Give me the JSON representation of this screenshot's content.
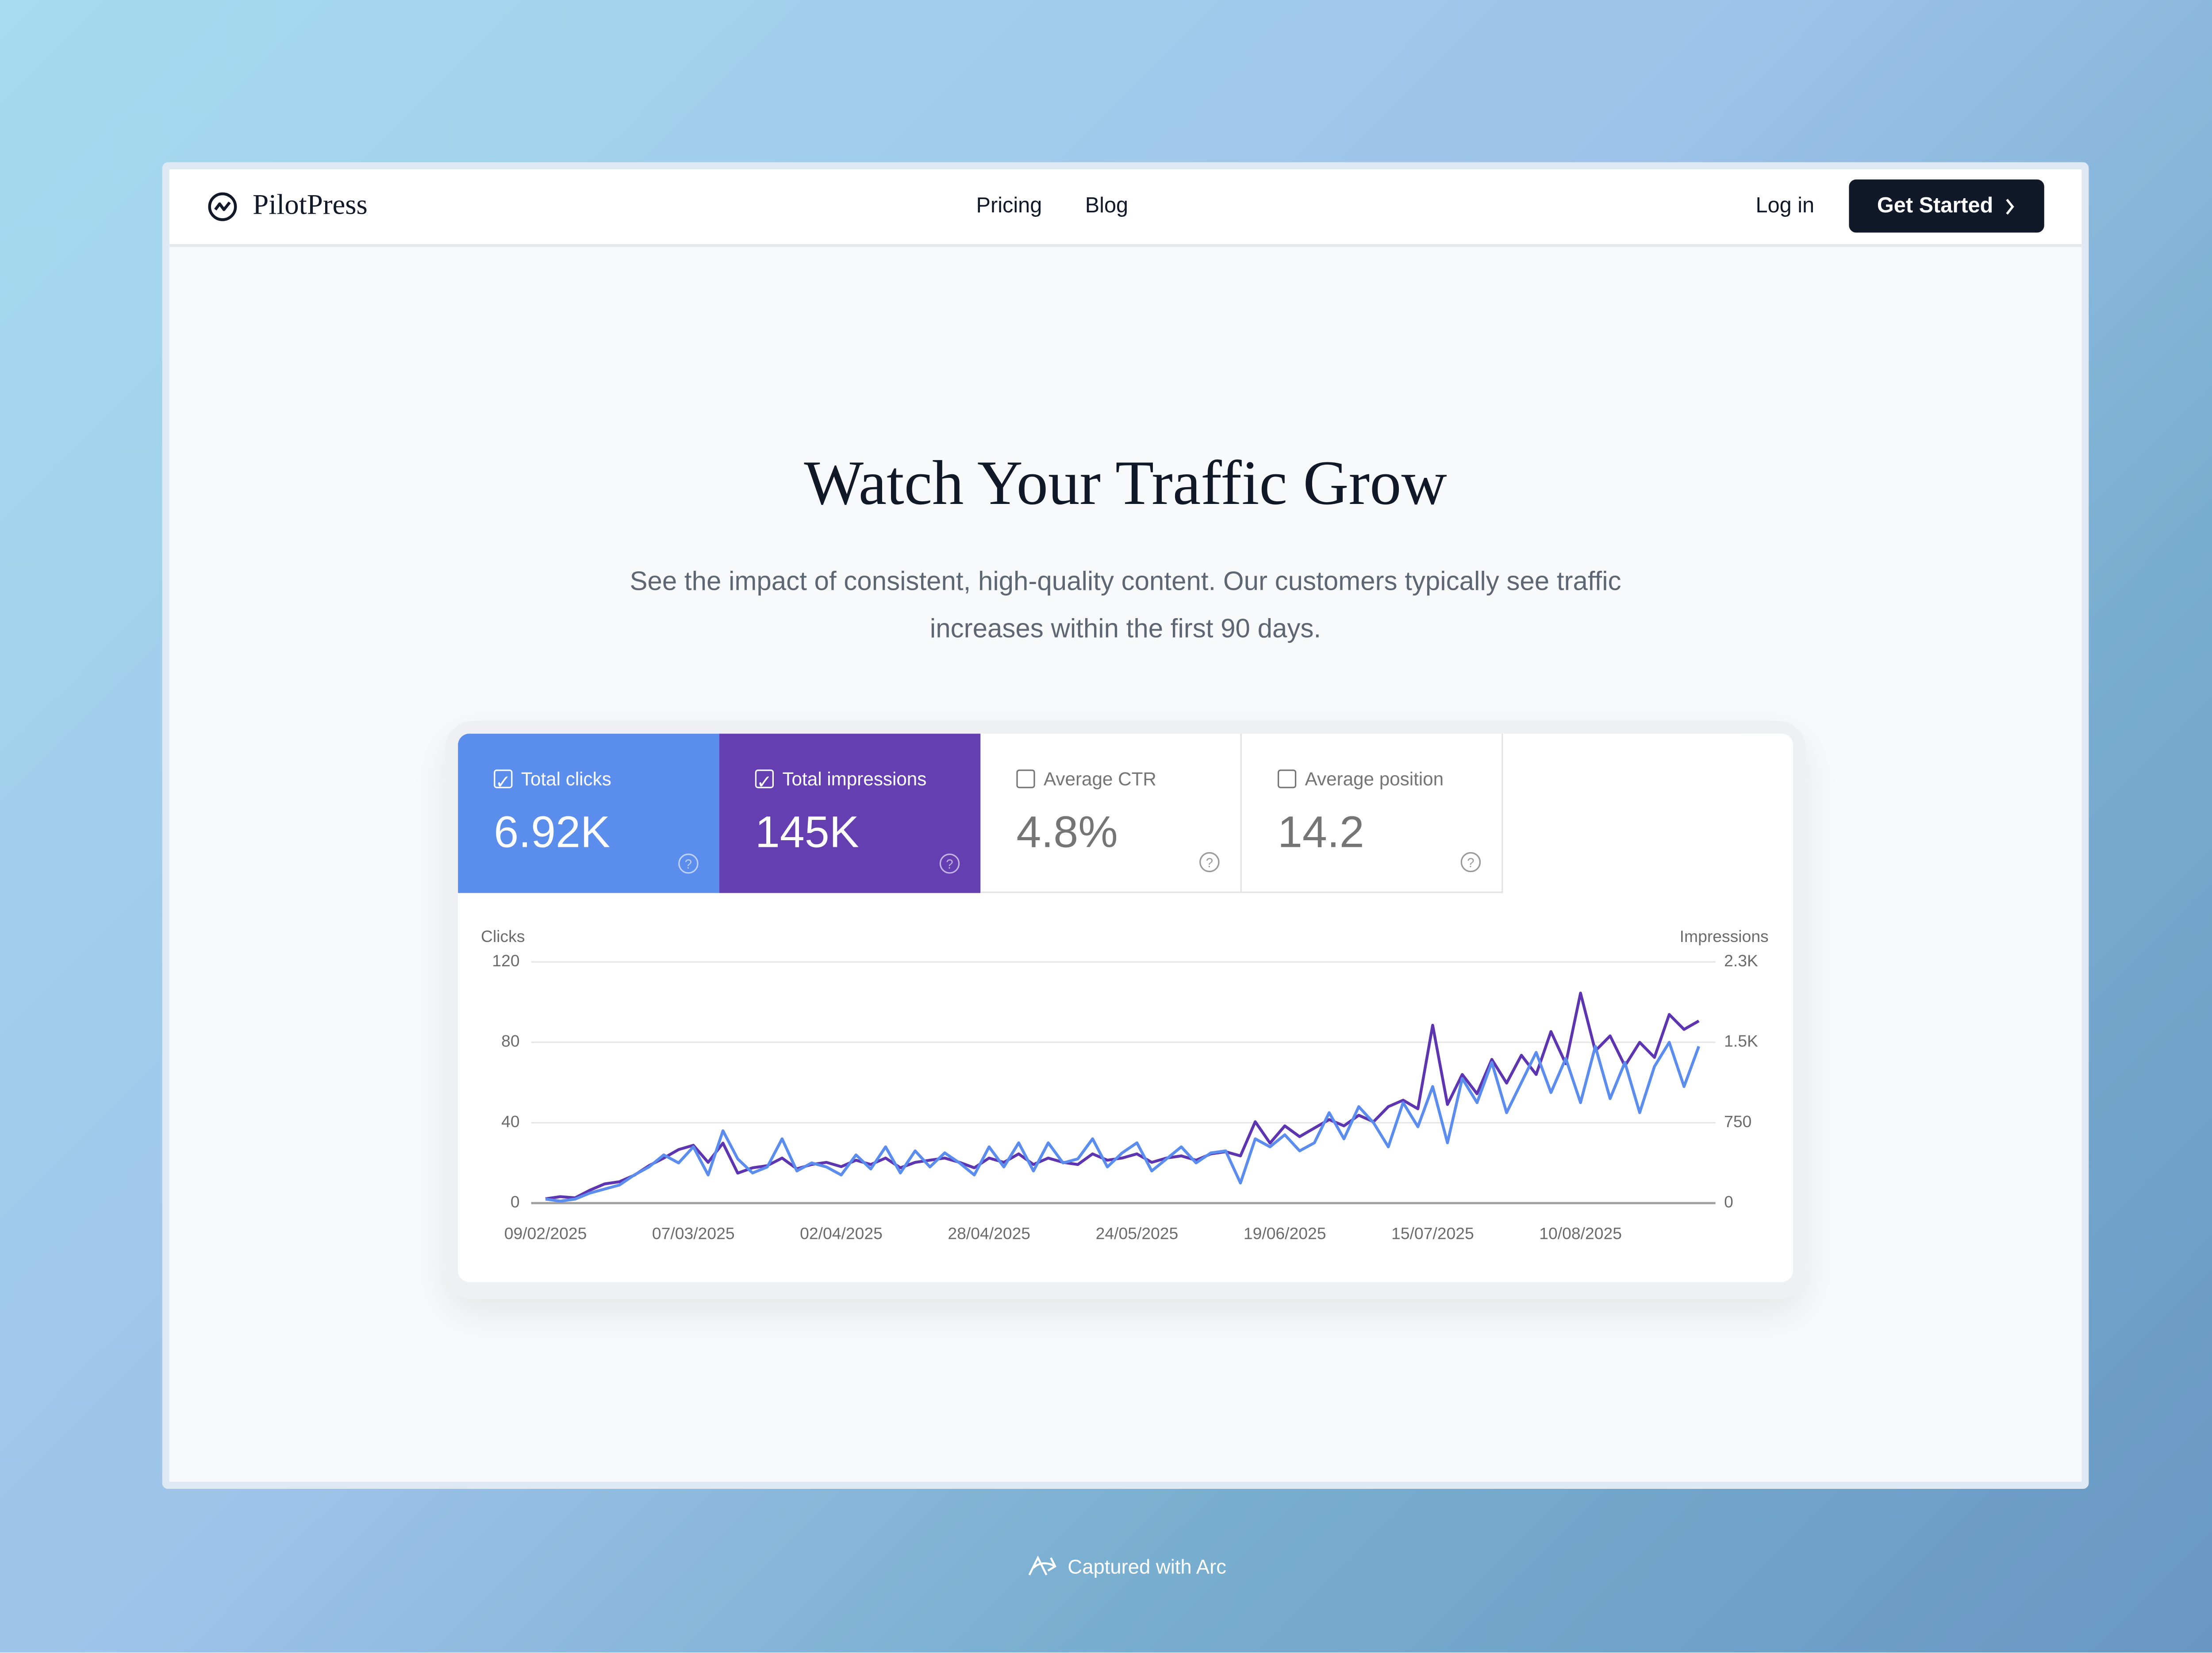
{
  "nav": {
    "brand": "PilotPress",
    "links": [
      "Pricing",
      "Blog"
    ],
    "login": "Log in",
    "cta": "Get Started"
  },
  "hero": {
    "title": "Watch Your Traffic Grow",
    "subtitle": "See the impact of consistent, high-quality content. Our customers typically see traffic increases within the first 90 days."
  },
  "metrics": [
    {
      "value": "6.92K"
    },
    {
      "value": "145K"
    },
    {
      "label": "Average CTR",
      "value": "4.8%"
    },
    {
      "label": "Average position",
      "value": "14.2"
    }
  ],
  "chart_data": {
    "type": "line",
    "y_label": "Clicks",
    "y2_label": "Impressions",
    "categories": [
      "09/02/2025",
      null,
      null,
      null,
      null,
      null,
      null,
      null,
      null,
      null,
      "07/03/2025",
      null,
      null,
      null,
      null,
      null,
      null,
      null,
      null,
      null,
      "02/04/2025",
      null,
      null,
      null,
      null,
      null,
      null,
      null,
      null,
      null,
      "28/04/2025",
      null,
      null,
      null,
      null,
      null,
      null,
      null,
      null,
      null,
      "24/05/2025",
      null,
      null,
      null,
      null,
      null,
      null,
      null,
      null,
      null,
      "19/06/2025",
      null,
      null,
      null,
      null,
      null,
      null,
      null,
      null,
      null,
      "15/07/2025",
      null,
      null,
      null,
      null,
      null,
      null,
      null,
      null,
      null,
      "10/08/2025",
      null,
      null,
      null,
      null,
      null,
      null,
      null,
      null
    ],
    "ylim": [
      0,
      120
    ],
    "yticks": [
      0,
      40,
      80,
      120
    ],
    "y2lim": [
      0,
      2250
    ],
    "y2ticks": [
      0,
      750,
      {
        "value": 1500,
        "label": "1.5K"
      },
      {
        "value": 2250,
        "label": "2.3K"
      }
    ],
    "grid": true,
    "series": [
      {
        "name": "Total clicks",
        "color": "#5b8def",
        "values": [
          2,
          1,
          2,
          5,
          7,
          9,
          14,
          18,
          24,
          20,
          28,
          14,
          36,
          22,
          15,
          18,
          32,
          16,
          20,
          18,
          14,
          24,
          17,
          28,
          15,
          26,
          18,
          25,
          20,
          14,
          28,
          18,
          30,
          16,
          30,
          20,
          22,
          32,
          18,
          25,
          30,
          16,
          22,
          28,
          20,
          25,
          26,
          10,
          32,
          28,
          34,
          26,
          30,
          45,
          32,
          48,
          40,
          28,
          50,
          38,
          58,
          30,
          62,
          50,
          70,
          45,
          60,
          75,
          55,
          72,
          50,
          78,
          52,
          70,
          45,
          68,
          80,
          58,
          78
        ]
      },
      {
        "name": "Total impressions",
        "color": "#5e35b1",
        "axis": "y2",
        "values": [
          40,
          60,
          50,
          120,
          180,
          200,
          260,
          350,
          420,
          500,
          540,
          380,
          560,
          280,
          330,
          350,
          420,
          320,
          360,
          380,
          340,
          400,
          360,
          420,
          330,
          380,
          400,
          420,
          380,
          330,
          420,
          380,
          460,
          360,
          420,
          380,
          360,
          460,
          400,
          420,
          460,
          380,
          420,
          440,
          400,
          460,
          480,
          440,
          760,
          560,
          720,
          620,
          700,
          780,
          720,
          820,
          760,
          900,
          960,
          880,
          1660,
          920,
          1200,
          1020,
          1340,
          1120,
          1380,
          1200,
          1600,
          1300,
          1960,
          1420,
          1560,
          1280,
          1500,
          1360,
          1760,
          1620,
          1700
        ]
      }
    ]
  },
  "footer": {
    "text": "Captured with Arc"
  }
}
